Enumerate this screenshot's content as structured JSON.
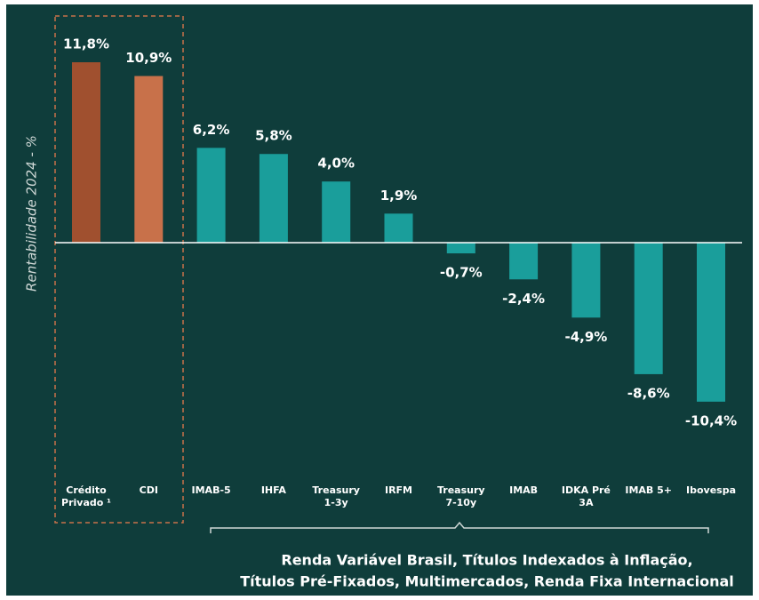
{
  "chart_data": {
    "type": "bar",
    "y_axis_label": "Rentabilidade 2024 - %",
    "categories": [
      "Crédito Privado ¹",
      "CDI",
      "IMAB-5",
      "IHFA",
      "Treasury 1-3y",
      "IRFM",
      "Treasury 7-10y",
      "IMAB",
      "IDKA Pré 3A",
      "IMAB 5+",
      "Ibovespa"
    ],
    "values": [
      11.8,
      10.9,
      6.2,
      5.8,
      4.0,
      1.9,
      -0.7,
      -2.4,
      -4.9,
      -8.6,
      -10.4
    ],
    "value_labels": [
      "11,8%",
      "10,9%",
      "6,2%",
      "5,8%",
      "4,0%",
      "1,9%",
      "-0,7%",
      "-2,4%",
      "-4,9%",
      "-8,6%",
      "-10,4%"
    ],
    "colors": [
      "#a0502f",
      "#c8714a",
      "#1a9e9b",
      "#1a9e9b",
      "#1a9e9b",
      "#1a9e9b",
      "#1a9e9b",
      "#1a9e9b",
      "#1a9e9b",
      "#1a9e9b",
      "#1a9e9b"
    ],
    "ylim": [
      -12,
      13
    ],
    "annotation": [
      "Renda Variável Brasil, Títulos Indexados à Inflação,",
      "Títulos Pré-Fixados, Multimercados, Renda Fixa Internacional"
    ]
  }
}
